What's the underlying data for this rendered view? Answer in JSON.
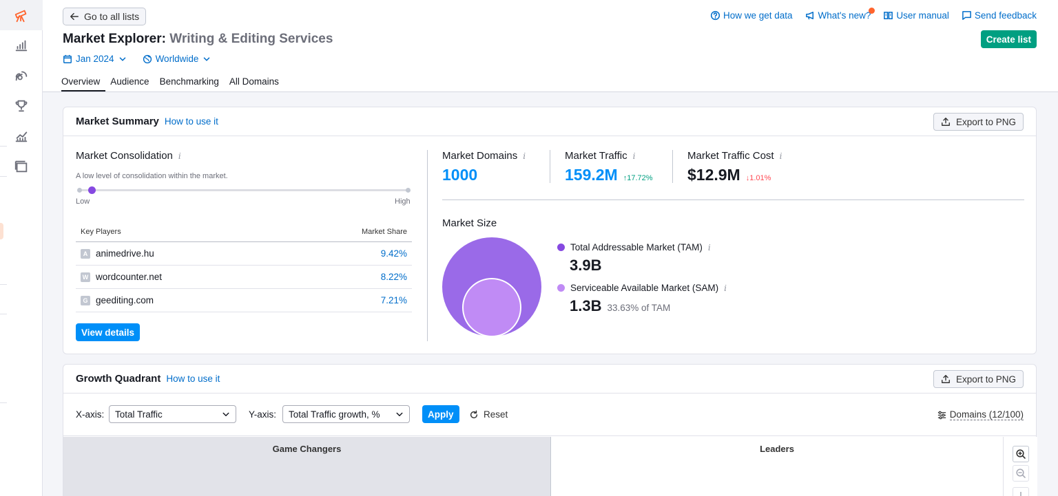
{
  "header": {
    "back_label": "Go to all lists",
    "title_main": "Market Explorer:",
    "title_sub": "Writing & Editing Services",
    "date_filter": "Jan 2024",
    "region_filter": "Worldwide",
    "tabs": [
      {
        "label": "Overview",
        "active": true
      },
      {
        "label": "Audience",
        "active": false
      },
      {
        "label": "Benchmarking",
        "active": false
      },
      {
        "label": "All Domains",
        "active": false
      }
    ],
    "links": {
      "how_data": "How we get data",
      "whats_new": "What's new?",
      "user_manual": "User manual",
      "feedback": "Send feedback"
    },
    "create_list": "Create list"
  },
  "summary": {
    "title": "Market Summary",
    "how_to": "How to use it",
    "export": "Export to PNG",
    "consolidation": {
      "label": "Market Consolidation",
      "description": "A low level of consolidation within the market.",
      "low": "Low",
      "high": "High",
      "level": 0.04
    },
    "key_players": {
      "col_players": "Key Players",
      "col_share": "Market Share",
      "rows": [
        {
          "letter": "A",
          "domain": "animedrive.hu",
          "share": "9.42%"
        },
        {
          "letter": "W",
          "domain": "wordcounter.net",
          "share": "8.22%"
        },
        {
          "letter": "G",
          "domain": "geediting.com",
          "share": "7.21%"
        }
      ]
    },
    "view_details": "View details",
    "metrics": {
      "domains": {
        "label": "Market Domains",
        "value": "1000"
      },
      "traffic": {
        "label": "Market Traffic",
        "value": "159.2M",
        "change": "↑17.72%"
      },
      "cost": {
        "label": "Market Traffic Cost",
        "value": "$12.9M",
        "change": "↓1.01%"
      }
    },
    "market_size": {
      "label": "Market Size",
      "tam_label": "Total Addressable Market (TAM)",
      "tam_value": "3.9B",
      "sam_label": "Serviceable Available Market (SAM)",
      "sam_value": "1.3B",
      "sam_sub": "33.63% of TAM",
      "tam_color": "#9a6ae8",
      "sam_color": "#c08bf5"
    }
  },
  "growth": {
    "title": "Growth Quadrant",
    "how_to": "How to use it",
    "export": "Export to PNG",
    "x_label": "X-axis:",
    "x_value": "Total Traffic",
    "y_label": "Y-axis:",
    "y_value": "Total Traffic growth, %",
    "apply": "Apply",
    "reset": "Reset",
    "domains": "Domains (12/100)",
    "quad_left": "Game Changers",
    "quad_right": "Leaders"
  },
  "colors": {
    "accent": "#006dca",
    "green": "#009f81",
    "up": "#009f81",
    "down": "#ff4953",
    "purple": "#8649e1"
  }
}
